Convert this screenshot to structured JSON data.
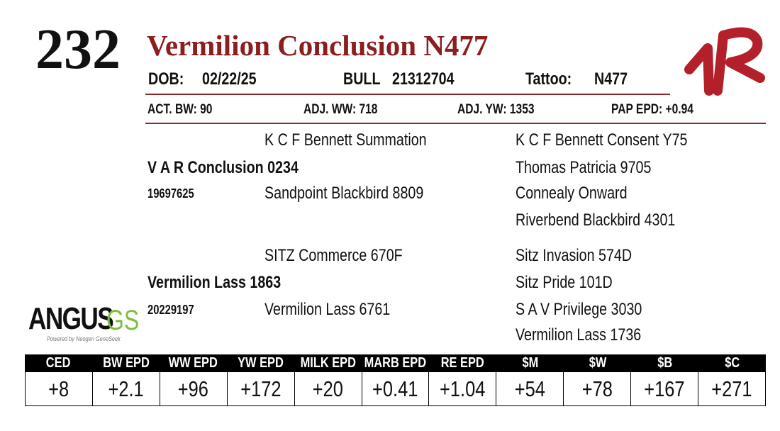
{
  "lot": "232",
  "title": "Vermilion Conclusion N477",
  "info": {
    "dob_label": "DOB:",
    "dob": "02/22/25",
    "sex": "BULL",
    "reg": "21312704",
    "tattoo_label": "Tattoo:",
    "tattoo": "N477"
  },
  "stats": [
    "ACT. BW: 90",
    "ADJ. WW: 718",
    "ADJ. YW: 1353",
    "PAP EPD: +0.94"
  ],
  "pedigree": {
    "sire": {
      "name": "V A R Conclusion 0234",
      "reg": "19697625",
      "sire": "K C F Bennett Summation",
      "dam": "Sandpoint Blackbird 8809",
      "sire_sire": "K C F Bennett Consent Y75",
      "sire_dam": "Thomas Patricia 9705",
      "dam_sire": "Connealy Onward",
      "dam_dam": "Riverbend Blackbird 4301"
    },
    "dam": {
      "name": "Vermilion Lass 1863",
      "reg": "20229197",
      "sire": "SITZ Commerce 670F",
      "dam": "Vermilion Lass 6761",
      "sire_sire": "Sitz Invasion 574D",
      "sire_dam": "Sitz Pride 101D",
      "dam_sire": "S A V Privilege 3030",
      "dam_dam": "Vermilion Lass 1736"
    }
  },
  "logo": {
    "name": "ANGUS",
    "suffix": "GS",
    "tagline": "Powered by Neogen GeneSeek"
  },
  "epd": {
    "headers": [
      "CED",
      "BW EPD",
      "WW EPD",
      "YW EPD",
      "MILK EPD",
      "MARB EPD",
      "RE EPD",
      "$M",
      "$W",
      "$B",
      "$C"
    ],
    "values": [
      "+8",
      "+2.1",
      "+96",
      "+172",
      "+20",
      "+0.41",
      "+1.04",
      "+54",
      "+78",
      "+167",
      "+271"
    ]
  }
}
